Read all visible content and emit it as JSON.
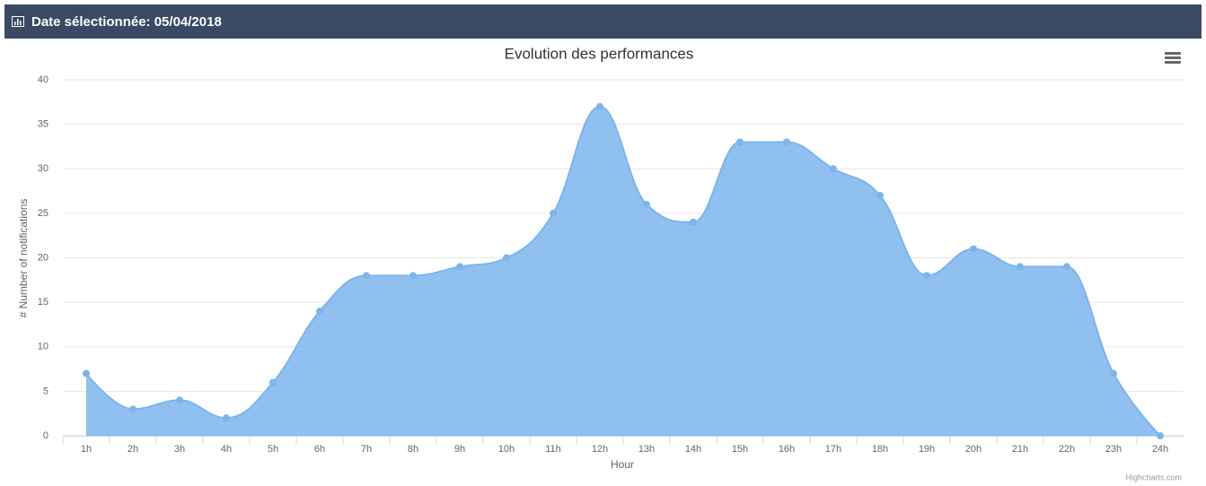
{
  "header": {
    "title": "Date sélectionnée: 05/04/2018"
  },
  "chart_data": {
    "type": "area",
    "title": "Evolution des performances",
    "x_label": "Hour",
    "y_label": "# Number of notifications",
    "credits": "Highcharts.com",
    "categories": [
      "1h",
      "2h",
      "3h",
      "4h",
      "5h",
      "6h",
      "7h",
      "8h",
      "9h",
      "10h",
      "11h",
      "12h",
      "13h",
      "14h",
      "15h",
      "16h",
      "17h",
      "18h",
      "19h",
      "20h",
      "21h",
      "22h",
      "23h",
      "24h"
    ],
    "values": [
      7,
      3,
      4,
      2,
      6,
      14,
      18,
      18,
      19,
      20,
      25,
      37,
      26,
      24,
      33,
      33,
      30,
      27,
      18,
      21,
      19,
      19,
      7,
      0
    ],
    "color": "#7cb5ec",
    "ylim": [
      0,
      40
    ],
    "yticks": [
      0,
      5,
      10,
      15,
      20,
      25,
      30,
      35,
      40
    ],
    "grid": true
  }
}
